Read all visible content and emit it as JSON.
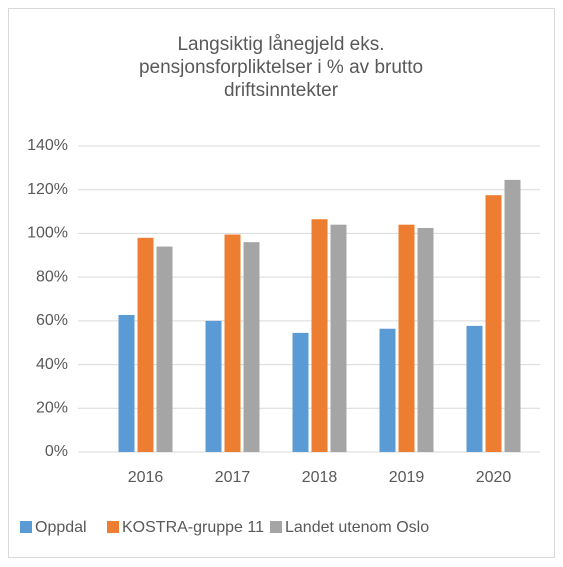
{
  "chart_data": {
    "type": "bar",
    "title": "Langsiktig lånegjeld eks. pensjonsforpliktelser i % av brutto driftsinntekter",
    "categories": [
      "2016",
      "2017",
      "2018",
      "2019",
      "2020"
    ],
    "series": [
      {
        "name": "Oppdal",
        "color": "#5b9bd5",
        "values": [
          62.7,
          60,
          54.5,
          56.4,
          57.7
        ]
      },
      {
        "name": "KOSTRA-gruppe 11",
        "color": "#ed7d31",
        "values": [
          98,
          99.5,
          106.5,
          104,
          117.5
        ]
      },
      {
        "name": "Landet utenom Oslo",
        "color": "#a5a5a5",
        "values": [
          94,
          96,
          104,
          102.5,
          124.5
        ]
      }
    ],
    "ylim": [
      0,
      140
    ],
    "yticks": [
      {
        "value": 0,
        "label": "0%"
      },
      {
        "value": 20,
        "label": "20%"
      },
      {
        "value": 40,
        "label": "40%"
      },
      {
        "value": 60,
        "label": "60%"
      },
      {
        "value": 80,
        "label": "80%"
      },
      {
        "value": 100,
        "label": "100%"
      },
      {
        "value": 120,
        "label": "120%"
      },
      {
        "value": 140,
        "label": "140%"
      }
    ],
    "grid": true,
    "legend": "bottom"
  }
}
